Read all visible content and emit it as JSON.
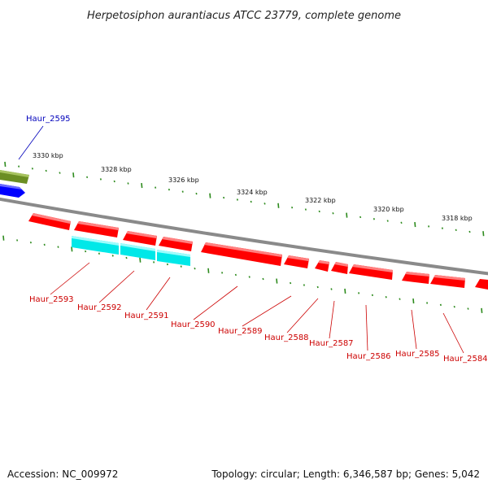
{
  "title": "Herpetosiphon aurantiacus ATCC 23779, complete genome",
  "footer": {
    "accession": "Accession: NC_009972",
    "summary": "Topology: circular; Length: 6,346,587 bp; Genes: 5,042"
  },
  "colors": {
    "backbone": "#8a8a8a",
    "tick": "#2e8b1e",
    "forward_label": "#0000bb",
    "reverse_label": "#cc0000",
    "red_feature": "#ff0000",
    "cyan_feature": "#00ffff",
    "blue_feature": "#0000ff",
    "olive_feature": "#6b8e23"
  },
  "ticks": [
    {
      "label": "3330 kbp"
    },
    {
      "label": "3328 kbp"
    },
    {
      "label": "3326 kbp"
    },
    {
      "label": "3324 kbp"
    },
    {
      "label": "3322 kbp"
    },
    {
      "label": "3320 kbp"
    },
    {
      "label": "3318 kbp"
    }
  ],
  "gene_labels": [
    {
      "label": "Haur_2595",
      "strand": "forward"
    },
    {
      "label": "Haur_2593",
      "strand": "reverse"
    },
    {
      "label": "Haur_2592",
      "strand": "reverse"
    },
    {
      "label": "Haur_2591",
      "strand": "reverse"
    },
    {
      "label": "Haur_2590",
      "strand": "reverse"
    },
    {
      "label": "Haur_2589",
      "strand": "reverse"
    },
    {
      "label": "Haur_2588",
      "strand": "reverse"
    },
    {
      "label": "Haur_2587",
      "strand": "reverse"
    },
    {
      "label": "Haur_2586",
      "strand": "reverse"
    },
    {
      "label": "Haur_2585",
      "strand": "reverse"
    },
    {
      "label": "Haur_2584",
      "strand": "reverse"
    }
  ]
}
